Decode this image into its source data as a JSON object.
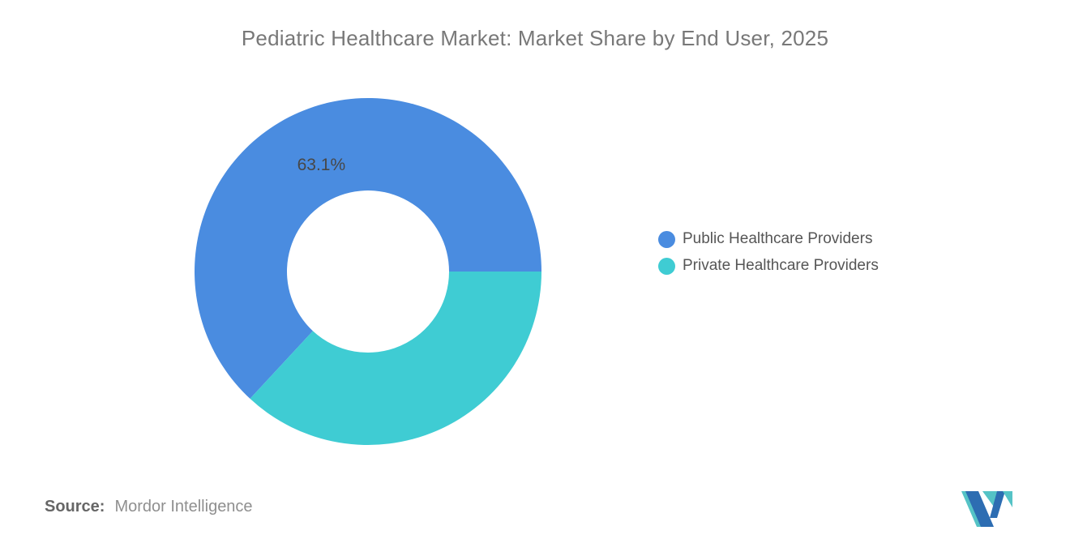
{
  "title": "Pediatric Healthcare Market: Market Share by End User, 2025",
  "chart_data": {
    "type": "pie",
    "subtype": "donut",
    "title": "Pediatric Healthcare Market: Market Share by End User, 2025",
    "categories": [
      "Public Healthcare Providers",
      "Private Healthcare Providers"
    ],
    "values": [
      63.1,
      36.9
    ],
    "unit": "%",
    "colors": [
      "#4a8ce0",
      "#3fccd3"
    ],
    "data_labels": [
      "63.1%",
      ""
    ],
    "start_angle_deg": 0,
    "direction": "counterclockwise",
    "inner_radius_ratio": 0.467,
    "outer_radius_px": 214,
    "label_radius_px": 144,
    "legend_position": "right",
    "background": "#ffffff"
  },
  "legend": {
    "items": [
      {
        "label": "Public Healthcare Providers",
        "color": "#4a8ce0"
      },
      {
        "label": "Private Healthcare Providers",
        "color": "#3fccd3"
      }
    ]
  },
  "source": {
    "label": "Source:",
    "text": "Mordor Intelligence"
  },
  "logo": {
    "name": "mordor-intelligence-logo",
    "teal": "#55c3c6",
    "blue": "#2d6db2"
  }
}
